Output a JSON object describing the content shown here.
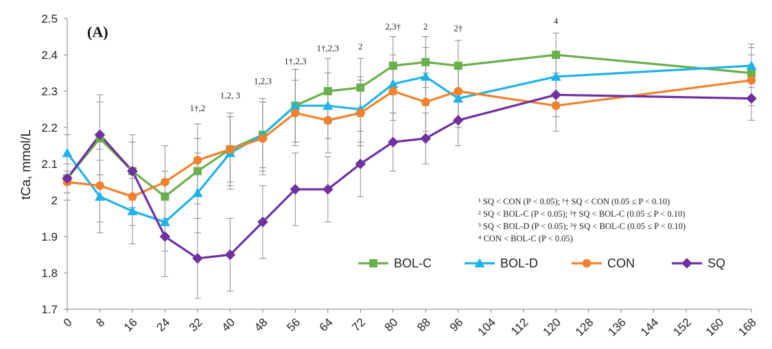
{
  "chart_data": {
    "type": "line",
    "panel_label": "(A)",
    "ylabel": "tCa, mmol/L",
    "xlabel": "",
    "ylim": [
      1.7,
      2.5
    ],
    "yticks": [
      "1.7",
      "1.8",
      "1.9",
      "2",
      "2.1",
      "2.2",
      "2.3",
      "2.4",
      "2.5"
    ],
    "xlim": [
      0,
      168
    ],
    "xticks": [
      "0",
      "8",
      "16",
      "24",
      "32",
      "40",
      "48",
      "56",
      "64",
      "72",
      "80",
      "88",
      "96",
      "104",
      "112",
      "120",
      "128",
      "136",
      "144",
      "152",
      "160",
      "168"
    ],
    "grid": false,
    "legend_position": "bottom-right",
    "colors": {
      "BOL-C": "#6ab04c",
      "BOL-D": "#1fb2e8",
      "CON": "#f0822d",
      "SQ": "#7030a0",
      "error": "#8c8c8c"
    },
    "series": [
      {
        "name": "BOL-C",
        "marker": "square",
        "x": [
          0,
          8,
          16,
          24,
          32,
          40,
          48,
          56,
          64,
          72,
          80,
          88,
          96,
          120,
          168
        ],
        "y": [
          2.06,
          2.17,
          2.08,
          2.01,
          2.08,
          2.14,
          2.18,
          2.26,
          2.3,
          2.31,
          2.37,
          2.38,
          2.37,
          2.4,
          2.35
        ],
        "err": [
          0.04,
          0.1,
          0.08,
          0.07,
          0.09,
          0.09,
          0.09,
          0.1,
          0.09,
          0.08,
          0.08,
          0.07,
          0.07,
          0.06,
          0.07
        ]
      },
      {
        "name": "BOL-D",
        "marker": "triangle",
        "x": [
          0,
          8,
          16,
          24,
          32,
          40,
          48,
          56,
          64,
          72,
          80,
          88,
          96,
          120,
          168
        ],
        "y": [
          2.13,
          2.01,
          1.97,
          1.94,
          2.02,
          2.13,
          2.18,
          2.26,
          2.26,
          2.25,
          2.32,
          2.34,
          2.28,
          2.34,
          2.37
        ],
        "err": [
          0.05,
          0.1,
          0.09,
          0.08,
          0.11,
          0.1,
          0.1,
          0.1,
          0.09,
          0.09,
          0.08,
          0.08,
          0.08,
          0.07,
          0.06
        ]
      },
      {
        "name": "CON",
        "marker": "circle",
        "x": [
          0,
          8,
          16,
          24,
          32,
          40,
          48,
          56,
          64,
          72,
          80,
          88,
          96,
          120,
          168
        ],
        "y": [
          2.05,
          2.04,
          2.01,
          2.05,
          2.11,
          2.14,
          2.17,
          2.24,
          2.22,
          2.24,
          2.3,
          2.27,
          2.3,
          2.26,
          2.33
        ],
        "err": [
          0.05,
          0.1,
          0.08,
          0.1,
          0.1,
          0.1,
          0.1,
          0.09,
          0.09,
          0.09,
          0.08,
          0.08,
          0.08,
          0.07,
          0.07
        ]
      },
      {
        "name": "SQ",
        "marker": "diamond",
        "x": [
          0,
          8,
          16,
          24,
          32,
          40,
          48,
          56,
          64,
          72,
          80,
          88,
          96,
          120,
          168
        ],
        "y": [
          2.06,
          2.18,
          2.08,
          1.9,
          1.84,
          1.85,
          1.94,
          2.03,
          2.03,
          2.1,
          2.16,
          2.17,
          2.22,
          2.29,
          2.28
        ],
        "err": [
          0.04,
          0.11,
          0.1,
          0.11,
          0.11,
          0.1,
          0.1,
          0.1,
          0.09,
          0.09,
          0.08,
          0.07,
          0.07,
          0.06,
          0.06
        ]
      }
    ],
    "annotations": [
      {
        "x": 32,
        "y": 2.245,
        "text": "1†,2"
      },
      {
        "x": 40,
        "y": 2.28,
        "text": "1,2, 3"
      },
      {
        "x": 48,
        "y": 2.32,
        "text": "1,2,3"
      },
      {
        "x": 56,
        "y": 2.375,
        "text": "1†,2,3"
      },
      {
        "x": 64,
        "y": 2.41,
        "text": "1†,2,3"
      },
      {
        "x": 72,
        "y": 2.415,
        "text": "2"
      },
      {
        "x": 80,
        "y": 2.47,
        "text": "2,3†"
      },
      {
        "x": 88,
        "y": 2.47,
        "text": "2"
      },
      {
        "x": 96,
        "y": 2.465,
        "text": "2†"
      },
      {
        "x": 120,
        "y": 2.485,
        "text": "4"
      }
    ],
    "footnotes": [
      "¹ SQ < CON (P < 0.05); ¹† SQ < CON (0.05 ≤ P < 0.10)",
      "² SQ < BOL-C (P < 0.05); ²† SQ < BOL-C (0.05 ≤ P < 0.10)",
      "³ SQ < BOL-D (P < 0.05); ³† SQ < BOL-C (0.05 ≤ P < 0.10)",
      "⁴ CON < BOL-C (P < 0.05)"
    ]
  }
}
